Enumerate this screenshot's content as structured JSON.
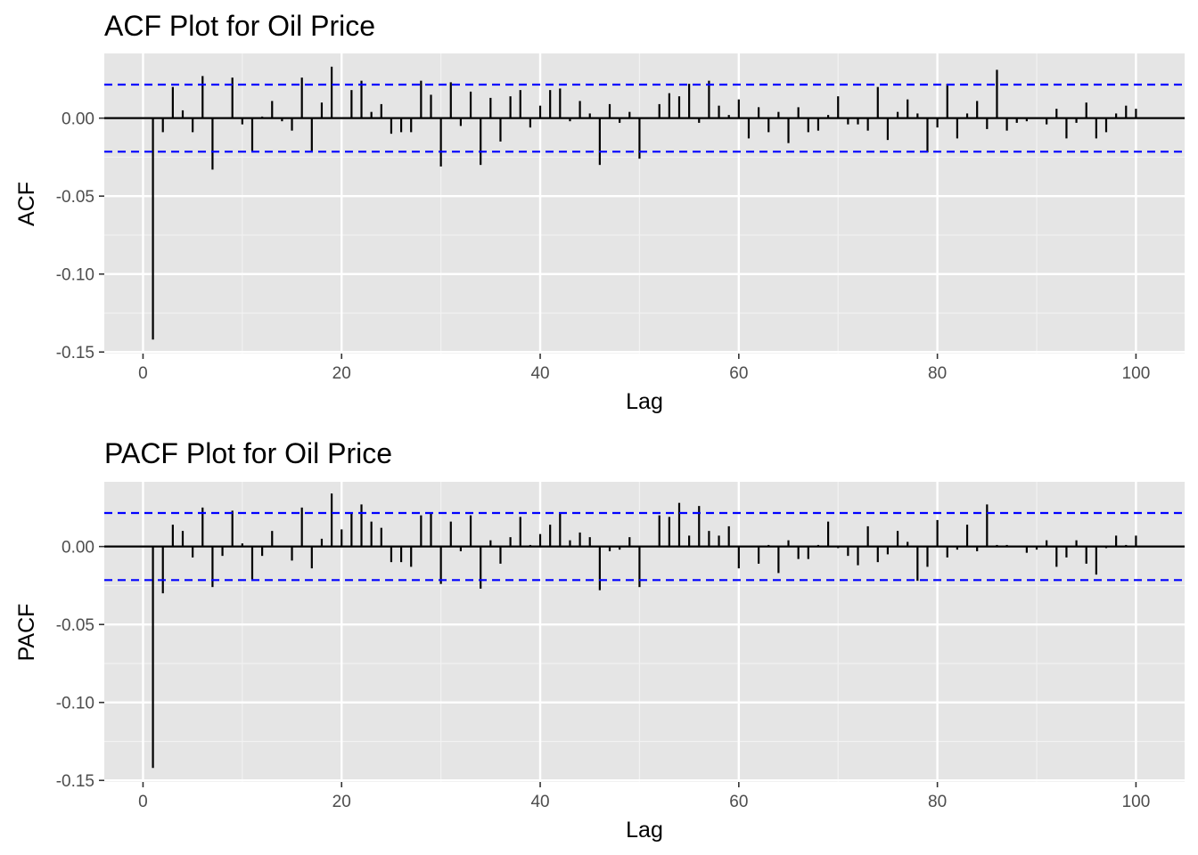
{
  "chart_data": [
    {
      "type": "bar",
      "title": "ACF Plot for Oil Price",
      "xlabel": "Lag",
      "ylabel": "ACF",
      "xlim": [
        -3.9,
        104.9
      ],
      "ylim": [
        -0.151,
        0.0415
      ],
      "x_ticks": [
        0,
        20,
        40,
        60,
        80,
        100
      ],
      "x_tick_labels": [
        "0",
        "20",
        "40",
        "60",
        "80",
        "100"
      ],
      "y_ticks": [
        -0.15,
        -0.1,
        -0.05,
        0.0
      ],
      "y_tick_labels": [
        "-0.15",
        "-0.10",
        "-0.05",
        "0.00"
      ],
      "confidence_bound": 0.0215,
      "lags": [
        1,
        2,
        3,
        4,
        5,
        6,
        7,
        8,
        9,
        10,
        11,
        12,
        13,
        14,
        15,
        16,
        17,
        18,
        19,
        20,
        21,
        22,
        23,
        24,
        25,
        26,
        27,
        28,
        29,
        30,
        31,
        32,
        33,
        34,
        35,
        36,
        37,
        38,
        39,
        40,
        41,
        42,
        43,
        44,
        45,
        46,
        47,
        48,
        49,
        50,
        51,
        52,
        53,
        54,
        55,
        56,
        57,
        58,
        59,
        60,
        61,
        62,
        63,
        64,
        65,
        66,
        67,
        68,
        69,
        70,
        71,
        72,
        73,
        74,
        75,
        76,
        77,
        78,
        79,
        80,
        81,
        82,
        83,
        84,
        85,
        86,
        87,
        88,
        89,
        90,
        91,
        92,
        93,
        94,
        95,
        96,
        97,
        98,
        99,
        100
      ],
      "values": [
        -0.142,
        -0.009,
        0.02,
        0.005,
        -0.009,
        0.027,
        -0.033,
        0.0,
        0.026,
        -0.004,
        -0.021,
        0.001,
        0.011,
        -0.002,
        -0.008,
        0.026,
        -0.021,
        0.01,
        0.033,
        0.0,
        0.018,
        0.024,
        0.004,
        0.009,
        -0.01,
        -0.009,
        -0.009,
        0.024,
        0.015,
        -0.031,
        0.023,
        -0.005,
        0.017,
        -0.03,
        0.013,
        -0.015,
        0.014,
        0.018,
        -0.006,
        0.008,
        0.018,
        0.019,
        -0.002,
        0.011,
        0.003,
        -0.03,
        0.009,
        -0.003,
        0.004,
        -0.026,
        0.0,
        0.009,
        0.016,
        0.014,
        0.022,
        -0.003,
        0.024,
        0.008,
        0.002,
        0.012,
        -0.013,
        0.007,
        -0.009,
        0.004,
        -0.016,
        0.007,
        -0.009,
        -0.008,
        0.002,
        0.014,
        -0.004,
        -0.004,
        -0.008,
        0.02,
        -0.014,
        0.004,
        0.012,
        0.003,
        -0.022,
        -0.006,
        0.022,
        -0.013,
        0.003,
        0.011,
        -0.007,
        0.031,
        -0.008,
        -0.003,
        -0.002,
        0.0,
        -0.004,
        0.006,
        -0.013,
        -0.003,
        0.01,
        -0.013,
        -0.009,
        0.003,
        0.008,
        0.006
      ]
    },
    {
      "type": "bar",
      "title": "PACF Plot for Oil Price",
      "xlabel": "Lag",
      "ylabel": "PACF",
      "xlim": [
        -3.9,
        104.9
      ],
      "ylim": [
        -0.151,
        0.0415
      ],
      "x_ticks": [
        0,
        20,
        40,
        60,
        80,
        100
      ],
      "x_tick_labels": [
        "0",
        "20",
        "40",
        "60",
        "80",
        "100"
      ],
      "y_ticks": [
        -0.15,
        -0.1,
        -0.05,
        0.0
      ],
      "y_tick_labels": [
        "-0.15",
        "-0.10",
        "-0.05",
        "0.00"
      ],
      "confidence_bound": 0.0215,
      "lags": [
        1,
        2,
        3,
        4,
        5,
        6,
        7,
        8,
        9,
        10,
        11,
        12,
        13,
        14,
        15,
        16,
        17,
        18,
        19,
        20,
        21,
        22,
        23,
        24,
        25,
        26,
        27,
        28,
        29,
        30,
        31,
        32,
        33,
        34,
        35,
        36,
        37,
        38,
        39,
        40,
        41,
        42,
        43,
        44,
        45,
        46,
        47,
        48,
        49,
        50,
        51,
        52,
        53,
        54,
        55,
        56,
        57,
        58,
        59,
        60,
        61,
        62,
        63,
        64,
        65,
        66,
        67,
        68,
        69,
        70,
        71,
        72,
        73,
        74,
        75,
        76,
        77,
        78,
        79,
        80,
        81,
        82,
        83,
        84,
        85,
        86,
        87,
        88,
        89,
        90,
        91,
        92,
        93,
        94,
        95,
        96,
        97,
        98,
        99,
        100
      ],
      "values": [
        -0.142,
        -0.03,
        0.014,
        0.01,
        -0.007,
        0.025,
        -0.026,
        -0.006,
        0.023,
        0.002,
        -0.021,
        -0.006,
        0.01,
        0.0,
        -0.009,
        0.025,
        -0.014,
        0.005,
        0.034,
        0.011,
        0.021,
        0.027,
        0.016,
        0.012,
        -0.01,
        -0.01,
        -0.013,
        0.02,
        0.022,
        -0.024,
        0.016,
        -0.003,
        0.02,
        -0.027,
        0.004,
        -0.011,
        0.006,
        0.019,
        0.001,
        0.008,
        0.014,
        0.022,
        0.004,
        0.009,
        0.006,
        -0.028,
        -0.003,
        -0.002,
        0.006,
        -0.026,
        0.0,
        0.02,
        0.019,
        0.028,
        0.007,
        0.026,
        0.01,
        0.007,
        0.013,
        -0.014,
        0.0,
        -0.011,
        0.001,
        -0.017,
        0.004,
        -0.008,
        -0.008,
        0.001,
        0.016,
        -0.001,
        -0.006,
        -0.012,
        0.013,
        -0.01,
        -0.005,
        0.01,
        0.003,
        -0.022,
        -0.013,
        0.017,
        -0.007,
        -0.002,
        0.014,
        -0.003,
        0.027,
        0.001,
        0.001,
        0.0,
        -0.004,
        -0.002,
        0.004,
        -0.013,
        -0.007,
        0.004,
        -0.011,
        -0.018,
        -0.001,
        0.007,
        0.001,
        0.007
      ]
    }
  ],
  "colors": {
    "panel_background": "#e5e5e5",
    "gridline_major": "#ffffff",
    "gridline_minor": "#f2f2f2",
    "bar": "#000000",
    "confidence_line": "#0000ff",
    "tick_label": "#4d4d4d"
  }
}
